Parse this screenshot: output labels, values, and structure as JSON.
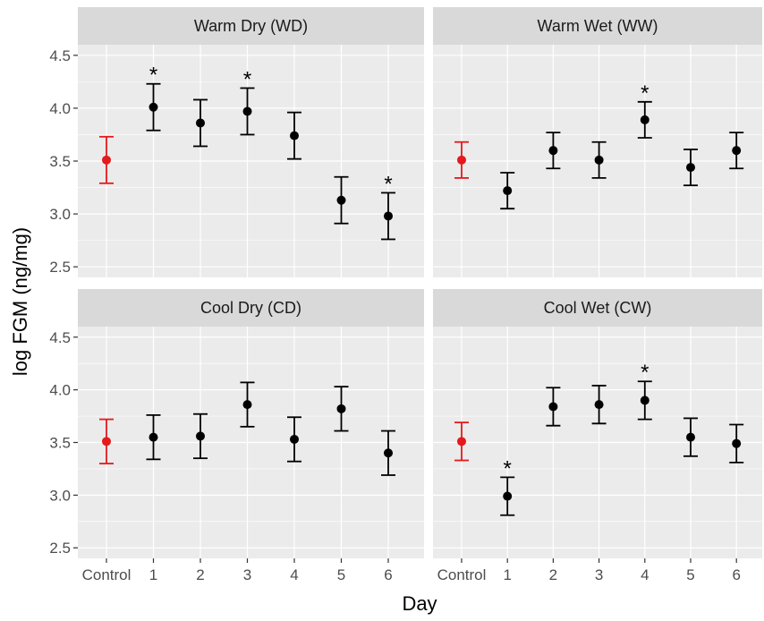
{
  "chart_data": {
    "type": "scatter",
    "subtype": "point-with-error-bars, faceted 2x2",
    "xlabel": "Day",
    "ylabel": "log FGM (ng/mg)",
    "categories": [
      "Control",
      "1",
      "2",
      "3",
      "4",
      "5",
      "6"
    ],
    "ylim": [
      2.4,
      4.6
    ],
    "yticks": [
      "2.5",
      "3.0",
      "3.5",
      "4.0",
      "4.5"
    ],
    "grid": true,
    "legend": "none",
    "colors": {
      "control": "#e41a1c",
      "treatment": "#000000",
      "panel_bg": "#ebebeb",
      "strip_bg": "#d9d9d9",
      "grid": "#ffffff"
    },
    "significance_marker": "*",
    "facets": [
      {
        "label": "Warm Dry (WD)",
        "mean": [
          3.51,
          4.01,
          3.86,
          3.97,
          3.74,
          3.13,
          2.98
        ],
        "lower": [
          3.29,
          3.79,
          3.64,
          3.75,
          3.52,
          2.91,
          2.76
        ],
        "upper": [
          3.73,
          4.23,
          4.08,
          4.19,
          3.96,
          3.35,
          3.2
        ],
        "significant": [
          false,
          true,
          false,
          true,
          false,
          false,
          true
        ]
      },
      {
        "label": "Warm Wet (WW)",
        "mean": [
          3.51,
          3.22,
          3.6,
          3.51,
          3.89,
          3.44,
          3.6
        ],
        "lower": [
          3.34,
          3.05,
          3.43,
          3.34,
          3.72,
          3.27,
          3.43
        ],
        "upper": [
          3.68,
          3.39,
          3.77,
          3.68,
          4.06,
          3.61,
          3.77
        ],
        "significant": [
          false,
          false,
          false,
          false,
          true,
          false,
          false
        ]
      },
      {
        "label": "Cool Dry (CD)",
        "mean": [
          3.51,
          3.55,
          3.56,
          3.86,
          3.53,
          3.82,
          3.4
        ],
        "lower": [
          3.3,
          3.34,
          3.35,
          3.65,
          3.32,
          3.61,
          3.19
        ],
        "upper": [
          3.72,
          3.76,
          3.77,
          4.07,
          3.74,
          4.03,
          3.61
        ],
        "significant": [
          false,
          false,
          false,
          false,
          false,
          false,
          false
        ]
      },
      {
        "label": "Cool Wet (CW)",
        "mean": [
          3.51,
          2.99,
          3.84,
          3.86,
          3.9,
          3.55,
          3.49
        ],
        "lower": [
          3.33,
          2.81,
          3.66,
          3.68,
          3.72,
          3.37,
          3.31
        ],
        "upper": [
          3.69,
          3.17,
          4.02,
          4.04,
          4.08,
          3.73,
          3.67
        ],
        "significant": [
          false,
          true,
          false,
          false,
          true,
          false,
          false
        ]
      }
    ]
  }
}
